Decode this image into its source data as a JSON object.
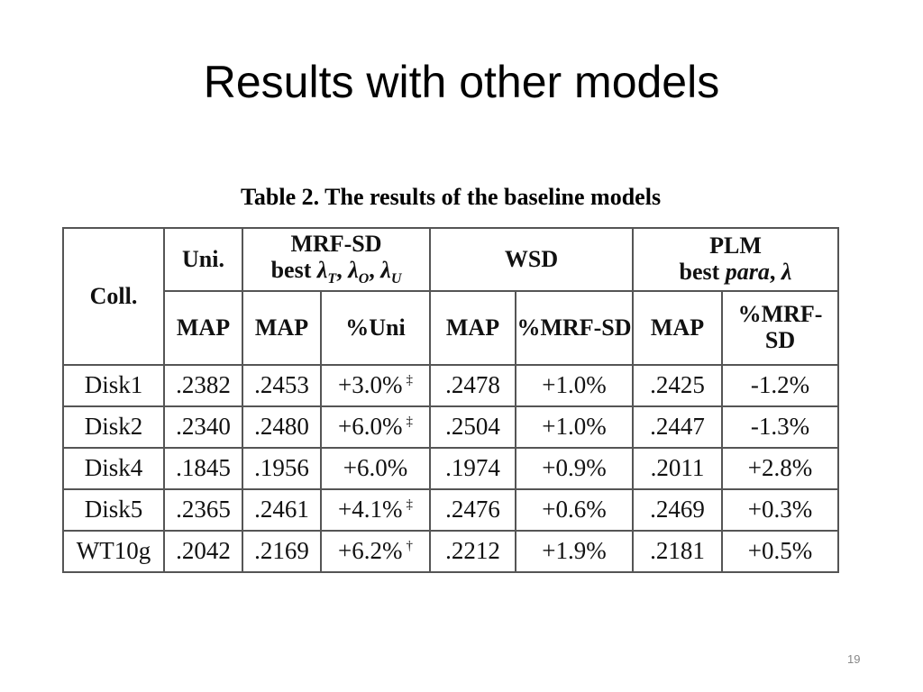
{
  "header": {
    "title": "Results with other models"
  },
  "table": {
    "caption": "Table 2. The results of the baseline models",
    "groups": {
      "coll": "Coll.",
      "uni": "Uni.",
      "mrf": {
        "line1": "MRF-SD",
        "prefix": "best",
        "items": [
          {
            "base": "λ",
            "sub": "T",
            "after": ","
          },
          {
            "base": "λ",
            "sub": "O",
            "after": ","
          },
          {
            "base": "λ",
            "sub": "U"
          }
        ]
      },
      "wsd": "WSD",
      "plm": {
        "line1": "PLM",
        "prefix": "best",
        "items": [
          {
            "base": "para",
            "after": ","
          },
          {
            "base": "λ"
          }
        ]
      }
    },
    "subheaders": [
      "MAP",
      "MAP",
      "%Uni",
      "MAP",
      "%MRF-SD",
      "MAP",
      "%MRF-SD"
    ],
    "rows": [
      [
        {
          "text": "Disk1"
        },
        {
          "text": ".2382"
        },
        {
          "text": ".2453"
        },
        {
          "text": "+3.0%",
          "sup": "‡"
        },
        {
          "text": ".2478"
        },
        {
          "text": "+1.0%"
        },
        {
          "text": ".2425"
        },
        {
          "text": "-1.2%"
        }
      ],
      [
        {
          "text": "Disk2"
        },
        {
          "text": ".2340"
        },
        {
          "text": ".2480"
        },
        {
          "text": "+6.0%",
          "sup": "‡"
        },
        {
          "text": ".2504"
        },
        {
          "text": "+1.0%"
        },
        {
          "text": ".2447"
        },
        {
          "text": "-1.3%"
        }
      ],
      [
        {
          "text": "Disk4"
        },
        {
          "text": ".1845"
        },
        {
          "text": ".1956"
        },
        {
          "text": "+6.0%"
        },
        {
          "text": ".1974"
        },
        {
          "text": "+0.9%"
        },
        {
          "text": ".2011"
        },
        {
          "text": "+2.8%"
        }
      ],
      [
        {
          "text": "Disk5"
        },
        {
          "text": ".2365"
        },
        {
          "text": ".2461"
        },
        {
          "text": "+4.1%",
          "sup": "‡"
        },
        {
          "text": ".2476"
        },
        {
          "text": "+0.6%"
        },
        {
          "text": ".2469"
        },
        {
          "text": "+0.3%"
        }
      ],
      [
        {
          "text": "WT10g"
        },
        {
          "text": ".2042"
        },
        {
          "text": ".2169"
        },
        {
          "text": "+6.2%",
          "sup": "†"
        },
        {
          "text": ".2212"
        },
        {
          "text": "+1.9%"
        },
        {
          "text": ".2181"
        },
        {
          "text": "+0.5%"
        }
      ]
    ]
  },
  "footer": {
    "page": "19"
  }
}
